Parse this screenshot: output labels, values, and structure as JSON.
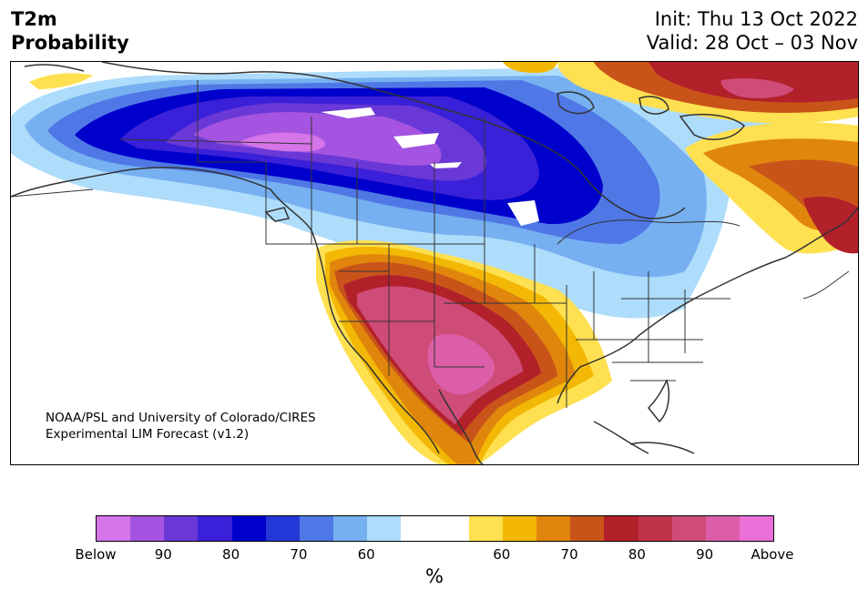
{
  "header": {
    "title_line1": "T2m",
    "title_line2": "Probability",
    "init": "Init: Thu 13 Oct 2022",
    "valid": "Valid: 28 Oct – 03 Nov"
  },
  "map": {
    "credit_line1": "NOAA/PSL and University of Colorado/CIRES",
    "credit_line2": "Experimental LIM Forecast (v1.2)",
    "region": "North America"
  },
  "colorbar": {
    "unit": "%",
    "colors": [
      "#d674e9",
      "#a454e0",
      "#6a38d6",
      "#3a20d8",
      "#0000cc",
      "#2438d8",
      "#4f78e6",
      "#76b0f0",
      "#aedcfb",
      "#ffffff",
      "#ffffff",
      "#fee050",
      "#f2b805",
      "#e0860c",
      "#c9541a",
      "#b2202a",
      "#c0334a",
      "#cf4b78",
      "#dc5ea8",
      "#ea70d8"
    ],
    "ticks": [
      {
        "label": "Below",
        "slot": 0
      },
      {
        "label": "90",
        "slot": 2
      },
      {
        "label": "80",
        "slot": 4
      },
      {
        "label": "70",
        "slot": 6
      },
      {
        "label": "60",
        "slot": 8
      },
      {
        "label": "60",
        "slot": 12
      },
      {
        "label": "70",
        "slot": 14
      },
      {
        "label": "80",
        "slot": 16
      },
      {
        "label": "90",
        "slot": 18
      },
      {
        "label": "Above",
        "slot": 20
      }
    ]
  }
}
